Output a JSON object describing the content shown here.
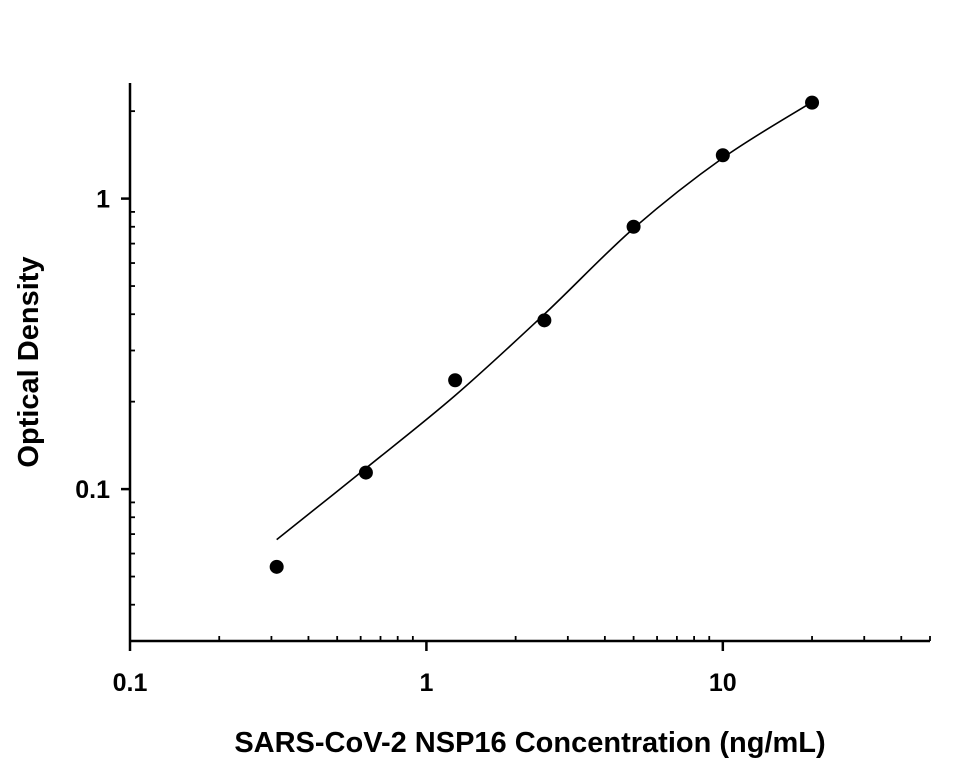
{
  "chart_data": {
    "type": "scatter",
    "title": "",
    "xlabel": "SARS-CoV-2 NSP16 Concentration (ng/mL)",
    "ylabel": "Optical Density",
    "x_scale": "log",
    "y_scale": "log",
    "xlim": [
      0.1,
      50
    ],
    "ylim": [
      0.03,
      2.5
    ],
    "x_ticks": [
      {
        "value": 0.1,
        "label": "0.1"
      },
      {
        "value": 1,
        "label": "1"
      },
      {
        "value": 10,
        "label": "10"
      }
    ],
    "y_ticks": [
      {
        "value": 0.1,
        "label": "0.1"
      },
      {
        "value": 1,
        "label": "1"
      }
    ],
    "grid": false,
    "legend": "none",
    "marker_color": "#000000",
    "line_color": "#000000",
    "points": {
      "x": [
        0.3125,
        0.625,
        1.25,
        2.5,
        5,
        10,
        20
      ],
      "y": [
        0.054,
        0.114,
        0.237,
        0.381,
        0.8,
        1.41,
        2.14
      ]
    },
    "fit_curve": {
      "x": [
        0.3125,
        0.625,
        1.25,
        2.5,
        5,
        10,
        20
      ],
      "y": [
        0.067,
        0.118,
        0.21,
        0.4,
        0.79,
        1.38,
        2.15
      ]
    }
  }
}
